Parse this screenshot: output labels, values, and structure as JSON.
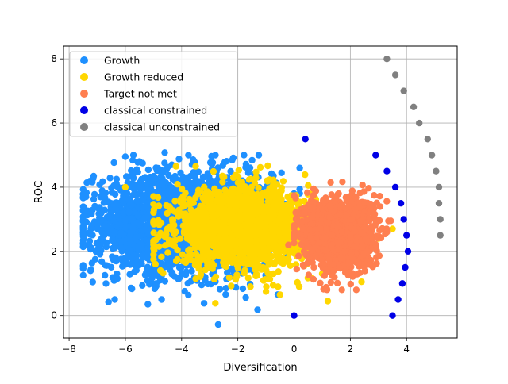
{
  "chart_data": {
    "type": "scatter",
    "title": "",
    "xlabel": "Diversification",
    "ylabel": "ROC",
    "xlim": [
      -8.2,
      5.8
    ],
    "ylim": [
      -0.7,
      8.4
    ],
    "x_ticks": [
      -8,
      -6,
      -4,
      -2,
      0,
      2,
      4
    ],
    "y_ticks": [
      0,
      2,
      4,
      6,
      8
    ],
    "grid": true,
    "legend_position": "top-left",
    "series": [
      {
        "name": "Growth",
        "color": "#1e90ff",
        "cloud": {
          "x_center": -3.9,
          "y_center": 2.9,
          "x_spread": 1.6,
          "y_spread": 0.78,
          "count": 2600,
          "x_min": -7.5,
          "x_max": 0.2,
          "y_min": 0.5,
          "y_max": 5.0
        },
        "points": [
          [
            -6.6,
            0.42
          ],
          [
            -5.2,
            0.35
          ],
          [
            -3.2,
            0.38
          ],
          [
            -2.7,
            -0.28
          ],
          [
            -1.3,
            0.18
          ],
          [
            -6.0,
            4.95
          ],
          [
            -4.6,
            5.08
          ],
          [
            -5.5,
            4.8
          ],
          [
            -2.2,
            4.85
          ],
          [
            -7.4,
            3.7
          ],
          [
            -7.3,
            2.2
          ],
          [
            -6.3,
            1.3
          ],
          [
            -4.9,
            1.0
          ]
        ]
      },
      {
        "name": "Growth reduced",
        "color": "#ffd700",
        "cloud": {
          "x_center": -1.8,
          "y_center": 2.75,
          "x_spread": 1.2,
          "y_spread": 0.58,
          "count": 2000,
          "x_min": -5.0,
          "x_max": 2.4,
          "y_min": 0.9,
          "y_max": 4.7
        },
        "points": [
          [
            -2.8,
            0.38
          ],
          [
            -0.5,
            0.65
          ],
          [
            1.2,
            0.45
          ],
          [
            -6.0,
            4.0
          ],
          [
            -4.2,
            4.65
          ],
          [
            -3.5,
            4.65
          ],
          [
            -1.2,
            4.62
          ],
          [
            2.6,
            3.25
          ],
          [
            3.0,
            2.4
          ],
          [
            -5.0,
            1.75
          ],
          [
            -1.0,
            0.75
          ],
          [
            2.4,
            1.05
          ],
          [
            3.5,
            2.7
          ]
        ]
      },
      {
        "name": "Target not met",
        "color": "#ff7f50",
        "cloud": {
          "x_center": 1.6,
          "y_center": 2.55,
          "x_spread": 0.62,
          "y_spread": 0.55,
          "count": 1400,
          "x_min": 0.0,
          "x_max": 3.7,
          "y_min": 0.8,
          "y_max": 4.2
        },
        "points": [
          [
            -0.2,
            2.2
          ],
          [
            1.05,
            0.82
          ],
          [
            1.7,
            0.8
          ],
          [
            2.6,
            2.0
          ],
          [
            3.3,
            2.6
          ],
          [
            1.3,
            4.15
          ]
        ]
      },
      {
        "name": "classical constrained",
        "color": "#0000e6",
        "points": [
          [
            0.4,
            5.5
          ],
          [
            2.9,
            5.0
          ],
          [
            3.3,
            4.5
          ],
          [
            3.6,
            4.0
          ],
          [
            3.8,
            3.5
          ],
          [
            3.9,
            3.0
          ],
          [
            4.0,
            2.5
          ],
          [
            4.05,
            2.0
          ],
          [
            3.95,
            1.5
          ],
          [
            3.85,
            1.0
          ],
          [
            3.7,
            0.5
          ],
          [
            3.5,
            0.0
          ],
          [
            0.0,
            0.0
          ]
        ]
      },
      {
        "name": "classical unconstrained",
        "color": "#808080",
        "points": [
          [
            3.3,
            8.0
          ],
          [
            3.6,
            7.5
          ],
          [
            3.9,
            7.0
          ],
          [
            4.25,
            6.5
          ],
          [
            4.45,
            6.0
          ],
          [
            4.75,
            5.5
          ],
          [
            4.9,
            5.0
          ],
          [
            5.05,
            4.5
          ],
          [
            5.15,
            4.0
          ],
          [
            5.15,
            3.5
          ],
          [
            5.2,
            3.0
          ],
          [
            5.2,
            2.5
          ]
        ]
      }
    ]
  }
}
